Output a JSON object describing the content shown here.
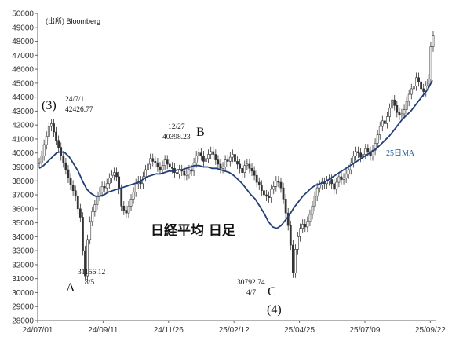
{
  "chart_data": {
    "type": "candlestick",
    "title": "日経平均 日足",
    "source": "(出所) Bloomberg",
    "ylim": [
      28000,
      50000
    ],
    "y_ticks": [
      28000,
      29000,
      30000,
      31000,
      32000,
      33000,
      34000,
      35000,
      36000,
      37000,
      38000,
      39000,
      40000,
      41000,
      42000,
      43000,
      44000,
      45000,
      46000,
      47000,
      48000,
      49000,
      50000
    ],
    "x_ticks": [
      "24/07/01",
      "24/09/11",
      "24/11/26",
      "25/02/12",
      "25/04/25",
      "25/07/09",
      "25/09/22"
    ],
    "grid": false,
    "series": [
      {
        "type": "price",
        "values": [
          39300,
          39800,
          40600,
          41200,
          41900,
          42100,
          41500,
          40900,
          40400,
          39800,
          39300,
          38800,
          38200,
          37700,
          37300,
          36900,
          36000,
          35400,
          33000,
          31200,
          33800,
          35100,
          35800,
          36300,
          36900,
          37200,
          37600,
          37500,
          37800,
          38200,
          38400,
          38600,
          38300,
          37400,
          36200,
          35900,
          35700,
          36200,
          36700,
          37200,
          37800,
          38000,
          37800,
          38300,
          38800,
          39200,
          39600,
          39400,
          39300,
          39000,
          38800,
          39100,
          39500,
          39200,
          39000,
          38900,
          38600,
          38500,
          38800,
          38700,
          38400,
          38500,
          38800,
          38700,
          39300,
          39800,
          40000,
          39800,
          39400,
          39600,
          39900,
          40100,
          39900,
          39500,
          39200,
          38900,
          39000,
          39500,
          39400,
          39700,
          39900,
          39400,
          39200,
          38900,
          38600,
          39100,
          39200,
          38900,
          38700,
          38400,
          37900,
          37700,
          37300,
          37000,
          36900,
          36800,
          37400,
          37600,
          38000,
          37900,
          37500,
          36700,
          35700,
          34800,
          33400,
          31400,
          33100,
          34000,
          34600,
          34900,
          34700,
          35100,
          35600,
          36200,
          36900,
          37500,
          37700,
          37900,
          37800,
          38000,
          38100,
          37800,
          37400,
          37900,
          38300,
          38100,
          38200,
          38500,
          38800,
          39300,
          39800,
          40100,
          40000,
          39700,
          39900,
          40300,
          40100,
          39800,
          40200,
          40700,
          41300,
          41900,
          42300,
          42100,
          42600,
          43200,
          43800,
          43400,
          42900,
          42700,
          42800,
          43100,
          43700,
          44200,
          44600,
          44800,
          45400,
          45100,
          44600,
          44400,
          44800,
          45300,
          47600,
          48400
        ]
      },
      {
        "name": "25日MA",
        "type": "line",
        "values": [
          38900,
          39100,
          39400,
          39700,
          40000,
          40100,
          40000,
          39700,
          39200,
          38700,
          38000,
          37400,
          37100,
          36900,
          36900,
          37000,
          37200,
          37300,
          37400,
          37500,
          37600,
          37700,
          37800,
          37900,
          38100,
          38300,
          38400,
          38500,
          38500,
          38600,
          38700,
          38700,
          38800,
          38800,
          38900,
          39000,
          39100,
          39100,
          39000,
          39000,
          38900,
          38900,
          38800,
          38700,
          38600,
          38400,
          38100,
          37800,
          37400,
          37000,
          36700,
          36200,
          35700,
          35100,
          34700,
          34600,
          34800,
          35200,
          35600,
          36100,
          36500,
          36900,
          37200,
          37500,
          37700,
          37800,
          37900,
          38100,
          38300,
          38500,
          38700,
          38900,
          39100,
          39300,
          39500,
          39700,
          39900,
          40100,
          40300,
          40600,
          40900,
          41200,
          41600,
          42000,
          42400,
          42700,
          43000,
          43400,
          43800,
          44200,
          44600,
          45200
        ]
      }
    ],
    "annotations": [
      {
        "label": "(3)",
        "sub": [
          "24/7/11",
          "42426.77"
        ]
      },
      {
        "label": "A",
        "sub": [
          "31156.12",
          "8/5"
        ]
      },
      {
        "label": "B",
        "sub": [
          "12/27",
          "40398.23"
        ]
      },
      {
        "label": "C",
        "sub": [
          "30792.74",
          "4/7"
        ]
      },
      {
        "label": "(4)"
      },
      {
        "label": "25日MA"
      }
    ]
  }
}
